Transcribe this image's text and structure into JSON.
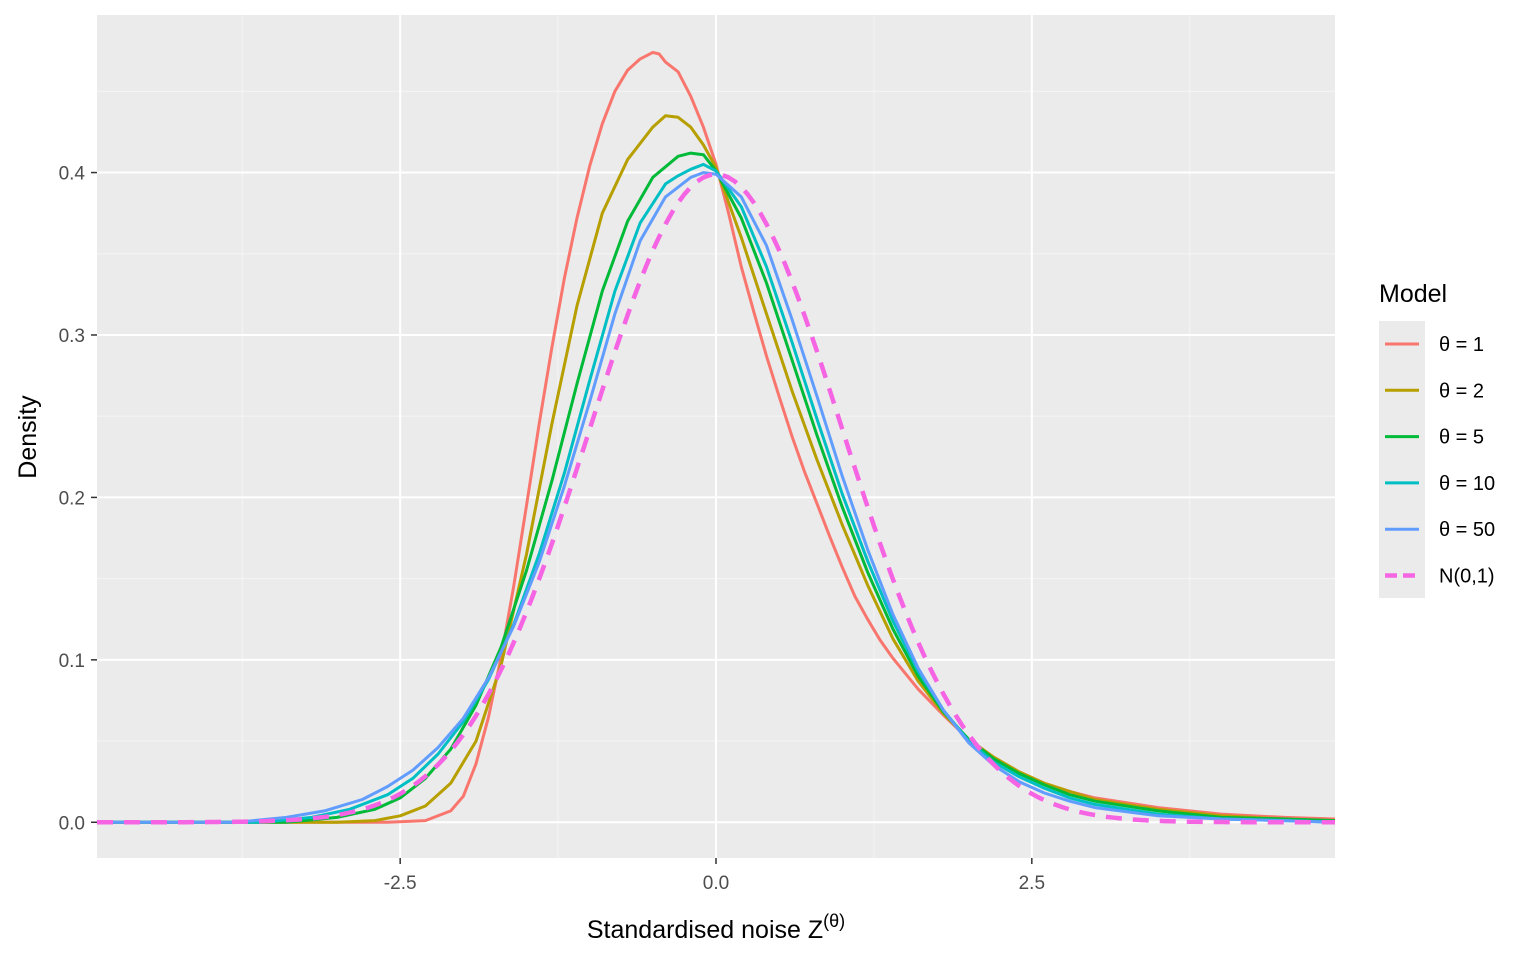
{
  "chart_data": {
    "type": "line",
    "xlabel": "Standardised noise Z",
    "xlabel_superscript": "(θ)",
    "ylabel": "Density",
    "xlim": [
      -4.9,
      4.9
    ],
    "ylim": [
      -0.022,
      0.497
    ],
    "x_ticks": [
      -2.5,
      0.0,
      2.5
    ],
    "x_tick_labels": [
      "-2.5",
      "0.0",
      "2.5"
    ],
    "y_ticks": [
      0.0,
      0.1,
      0.2,
      0.3,
      0.4
    ],
    "y_tick_labels": [
      "0.0",
      "0.1",
      "0.2",
      "0.3",
      "0.4"
    ],
    "grid": true,
    "legend": {
      "title": "Model",
      "position": "right"
    },
    "series": [
      {
        "name": "θ = 1",
        "color": "#F8766D",
        "dash": "solid",
        "points": [
          [
            -4.9,
            0
          ],
          [
            -2.6,
            0
          ],
          [
            -2.3,
            0.001
          ],
          [
            -2.1,
            0.007
          ],
          [
            -2.0,
            0.016
          ],
          [
            -1.9,
            0.036
          ],
          [
            -1.8,
            0.065
          ],
          [
            -1.7,
            0.102
          ],
          [
            -1.6,
            0.146
          ],
          [
            -1.5,
            0.195
          ],
          [
            -1.4,
            0.245
          ],
          [
            -1.3,
            0.292
          ],
          [
            -1.2,
            0.335
          ],
          [
            -1.1,
            0.372
          ],
          [
            -1.0,
            0.404
          ],
          [
            -0.9,
            0.43
          ],
          [
            -0.8,
            0.45
          ],
          [
            -0.7,
            0.463
          ],
          [
            -0.6,
            0.47
          ],
          [
            -0.5,
            0.474
          ],
          [
            -0.45,
            0.473
          ],
          [
            -0.4,
            0.468
          ],
          [
            -0.3,
            0.462
          ],
          [
            -0.2,
            0.447
          ],
          [
            -0.1,
            0.428
          ],
          [
            0.0,
            0.405
          ],
          [
            0.1,
            0.375
          ],
          [
            0.2,
            0.342
          ],
          [
            0.3,
            0.314
          ],
          [
            0.4,
            0.287
          ],
          [
            0.5,
            0.262
          ],
          [
            0.6,
            0.238
          ],
          [
            0.7,
            0.216
          ],
          [
            0.8,
            0.196
          ],
          [
            0.9,
            0.176
          ],
          [
            1.0,
            0.157
          ],
          [
            1.1,
            0.139
          ],
          [
            1.2,
            0.125
          ],
          [
            1.3,
            0.112
          ],
          [
            1.4,
            0.101
          ],
          [
            1.6,
            0.082
          ],
          [
            1.8,
            0.066
          ],
          [
            2.0,
            0.051
          ],
          [
            2.2,
            0.04
          ],
          [
            2.4,
            0.031
          ],
          [
            2.6,
            0.024
          ],
          [
            2.8,
            0.019
          ],
          [
            3.0,
            0.015
          ],
          [
            3.5,
            0.009
          ],
          [
            4.0,
            0.005
          ],
          [
            4.5,
            0.003
          ],
          [
            4.9,
            0.002
          ]
        ]
      },
      {
        "name": "θ = 2",
        "color": "#B79F00",
        "dash": "solid",
        "points": [
          [
            -4.9,
            0
          ],
          [
            -3.0,
            0
          ],
          [
            -2.7,
            0.001
          ],
          [
            -2.5,
            0.004
          ],
          [
            -2.3,
            0.01
          ],
          [
            -2.1,
            0.024
          ],
          [
            -1.9,
            0.05
          ],
          [
            -1.7,
            0.097
          ],
          [
            -1.5,
            0.165
          ],
          [
            -1.3,
            0.245
          ],
          [
            -1.1,
            0.318
          ],
          [
            -0.9,
            0.375
          ],
          [
            -0.7,
            0.408
          ],
          [
            -0.5,
            0.428
          ],
          [
            -0.4,
            0.435
          ],
          [
            -0.3,
            0.434
          ],
          [
            -0.2,
            0.428
          ],
          [
            -0.1,
            0.417
          ],
          [
            0.0,
            0.403
          ],
          [
            0.2,
            0.36
          ],
          [
            0.4,
            0.313
          ],
          [
            0.6,
            0.266
          ],
          [
            0.8,
            0.223
          ],
          [
            1.0,
            0.183
          ],
          [
            1.2,
            0.146
          ],
          [
            1.4,
            0.113
          ],
          [
            1.6,
            0.087
          ],
          [
            1.8,
            0.067
          ],
          [
            2.0,
            0.051
          ],
          [
            2.2,
            0.04
          ],
          [
            2.4,
            0.031
          ],
          [
            2.6,
            0.024
          ],
          [
            2.8,
            0.019
          ],
          [
            3.0,
            0.014
          ],
          [
            3.5,
            0.008
          ],
          [
            4.0,
            0.004
          ],
          [
            4.5,
            0.002
          ],
          [
            4.9,
            0.001
          ]
        ]
      },
      {
        "name": "θ = 5",
        "color": "#00BA38",
        "dash": "solid",
        "points": [
          [
            -4.9,
            0
          ],
          [
            -3.4,
            0
          ],
          [
            -3.0,
            0.003
          ],
          [
            -2.7,
            0.008
          ],
          [
            -2.5,
            0.015
          ],
          [
            -2.3,
            0.027
          ],
          [
            -2.1,
            0.045
          ],
          [
            -1.9,
            0.072
          ],
          [
            -1.7,
            0.108
          ],
          [
            -1.5,
            0.155
          ],
          [
            -1.3,
            0.21
          ],
          [
            -1.1,
            0.27
          ],
          [
            -0.9,
            0.327
          ],
          [
            -0.7,
            0.37
          ],
          [
            -0.5,
            0.397
          ],
          [
            -0.3,
            0.41
          ],
          [
            -0.2,
            0.412
          ],
          [
            -0.1,
            0.411
          ],
          [
            0.0,
            0.401
          ],
          [
            0.2,
            0.372
          ],
          [
            0.4,
            0.332
          ],
          [
            0.6,
            0.285
          ],
          [
            0.8,
            0.238
          ],
          [
            1.0,
            0.194
          ],
          [
            1.2,
            0.154
          ],
          [
            1.4,
            0.119
          ],
          [
            1.6,
            0.09
          ],
          [
            1.8,
            0.068
          ],
          [
            2.0,
            0.051
          ],
          [
            2.2,
            0.039
          ],
          [
            2.4,
            0.03
          ],
          [
            2.6,
            0.023
          ],
          [
            2.8,
            0.017
          ],
          [
            3.0,
            0.013
          ],
          [
            3.5,
            0.007
          ],
          [
            4.0,
            0.003
          ],
          [
            4.5,
            0.002
          ],
          [
            4.9,
            0.001
          ]
        ]
      },
      {
        "name": "θ = 10",
        "color": "#00BFC4",
        "dash": "solid",
        "points": [
          [
            -4.9,
            0
          ],
          [
            -3.6,
            0
          ],
          [
            -3.2,
            0.003
          ],
          [
            -2.9,
            0.008
          ],
          [
            -2.6,
            0.017
          ],
          [
            -2.4,
            0.027
          ],
          [
            -2.2,
            0.042
          ],
          [
            -2.0,
            0.062
          ],
          [
            -1.8,
            0.088
          ],
          [
            -1.6,
            0.122
          ],
          [
            -1.4,
            0.165
          ],
          [
            -1.2,
            0.215
          ],
          [
            -1.0,
            0.272
          ],
          [
            -0.8,
            0.327
          ],
          [
            -0.6,
            0.369
          ],
          [
            -0.4,
            0.393
          ],
          [
            -0.3,
            0.398
          ],
          [
            -0.2,
            0.402
          ],
          [
            -0.1,
            0.405
          ],
          [
            0.0,
            0.401
          ],
          [
            0.2,
            0.379
          ],
          [
            0.4,
            0.342
          ],
          [
            0.6,
            0.296
          ],
          [
            0.8,
            0.248
          ],
          [
            1.0,
            0.202
          ],
          [
            1.2,
            0.161
          ],
          [
            1.4,
            0.124
          ],
          [
            1.6,
            0.093
          ],
          [
            1.8,
            0.069
          ],
          [
            2.0,
            0.05
          ],
          [
            2.2,
            0.037
          ],
          [
            2.4,
            0.028
          ],
          [
            2.6,
            0.021
          ],
          [
            2.8,
            0.015
          ],
          [
            3.0,
            0.011
          ],
          [
            3.5,
            0.005
          ],
          [
            4.0,
            0.002
          ],
          [
            4.5,
            0.001
          ],
          [
            4.9,
            0
          ]
        ]
      },
      {
        "name": "θ = 50",
        "color": "#619CFF",
        "dash": "solid",
        "points": [
          [
            -4.9,
            0
          ],
          [
            -3.8,
            0
          ],
          [
            -3.4,
            0.003
          ],
          [
            -3.1,
            0.007
          ],
          [
            -2.8,
            0.014
          ],
          [
            -2.6,
            0.022
          ],
          [
            -2.4,
            0.032
          ],
          [
            -2.2,
            0.046
          ],
          [
            -2.0,
            0.064
          ],
          [
            -1.8,
            0.089
          ],
          [
            -1.6,
            0.121
          ],
          [
            -1.4,
            0.16
          ],
          [
            -1.2,
            0.207
          ],
          [
            -1.0,
            0.259
          ],
          [
            -0.8,
            0.313
          ],
          [
            -0.6,
            0.358
          ],
          [
            -0.4,
            0.385
          ],
          [
            -0.2,
            0.397
          ],
          [
            -0.1,
            0.4
          ],
          [
            0.0,
            0.399
          ],
          [
            0.2,
            0.385
          ],
          [
            0.4,
            0.355
          ],
          [
            0.6,
            0.31
          ],
          [
            0.8,
            0.262
          ],
          [
            1.0,
            0.213
          ],
          [
            1.2,
            0.168
          ],
          [
            1.4,
            0.128
          ],
          [
            1.6,
            0.095
          ],
          [
            1.8,
            0.069
          ],
          [
            2.0,
            0.049
          ],
          [
            2.2,
            0.035
          ],
          [
            2.4,
            0.025
          ],
          [
            2.6,
            0.018
          ],
          [
            2.8,
            0.013
          ],
          [
            3.0,
            0.009
          ],
          [
            3.5,
            0.004
          ],
          [
            4.0,
            0.002
          ],
          [
            4.5,
            0.001
          ],
          [
            4.9,
            0
          ]
        ]
      },
      {
        "name": "N(0,1)",
        "color": "#F564E3",
        "dash": "dashed",
        "formula": "standard normal density"
      }
    ]
  }
}
